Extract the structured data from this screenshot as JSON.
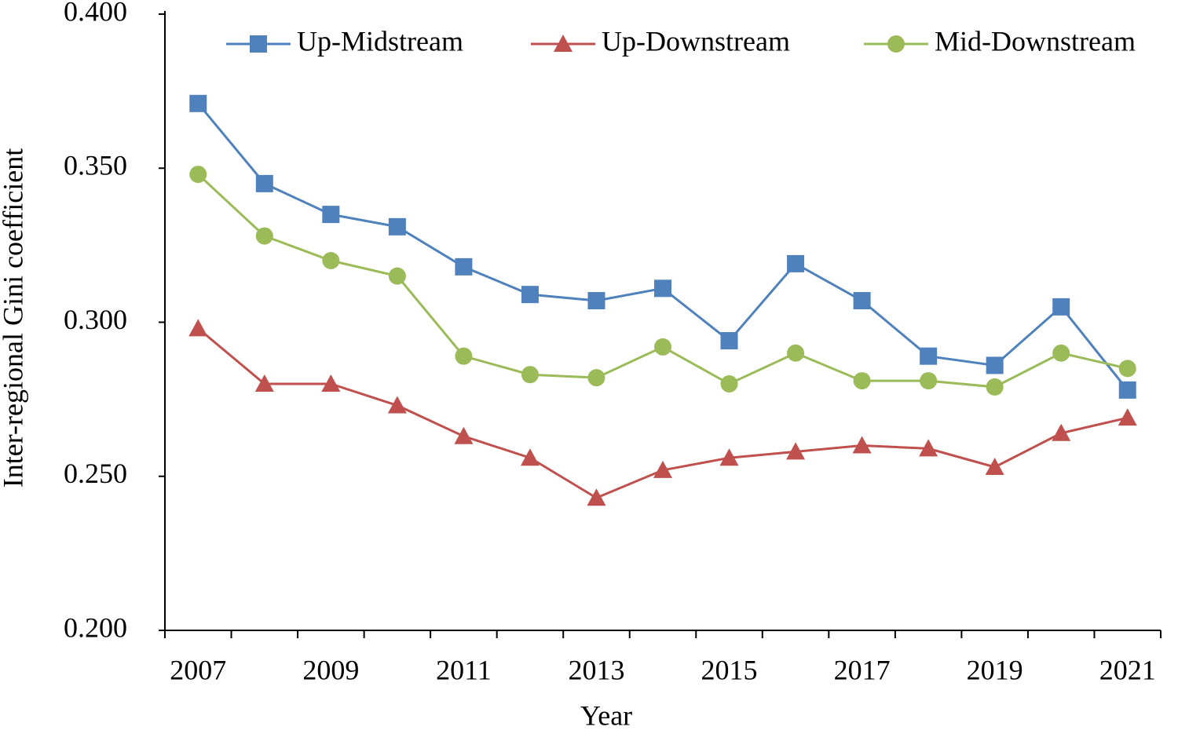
{
  "chart_data": {
    "type": "line",
    "x_label": "Year",
    "y_label": "Inter-regional Gini coefficient",
    "categories": [
      "2007",
      null,
      "2009",
      null,
      "2011",
      null,
      "2013",
      null,
      "2015",
      null,
      "2017",
      null,
      "2019",
      null,
      "2021"
    ],
    "ylim": [
      0.2,
      0.4
    ],
    "yticks": [
      {
        "value": 0.2,
        "label": "0.200"
      },
      {
        "value": 0.25,
        "label": "0.250"
      },
      {
        "value": 0.3,
        "label": "0.300"
      },
      {
        "value": 0.35,
        "label": "0.350"
      },
      {
        "value": 0.4,
        "label": "0.400"
      }
    ],
    "grid": false,
    "legend": "top",
    "series": [
      {
        "name": "Up-Midstream",
        "color": "#4f81bd",
        "marker": "square",
        "values": [
          0.371,
          0.345,
          0.335,
          0.331,
          0.318,
          0.309,
          0.307,
          0.311,
          0.294,
          0.319,
          0.307,
          0.289,
          0.286,
          0.305,
          0.278
        ]
      },
      {
        "name": "Up-Downstream",
        "color": "#c0504d",
        "marker": "triangle",
        "values": [
          0.298,
          0.28,
          0.28,
          0.273,
          0.263,
          0.256,
          0.243,
          0.252,
          0.256,
          0.258,
          0.26,
          0.259,
          0.253,
          0.264,
          0.269
        ]
      },
      {
        "name": "Mid-Downstream",
        "color": "#9bbb59",
        "marker": "circle",
        "values": [
          0.348,
          0.328,
          0.32,
          0.315,
          0.289,
          0.283,
          0.282,
          0.292,
          0.28,
          0.29,
          0.281,
          0.281,
          0.279,
          0.29,
          0.285
        ]
      }
    ]
  }
}
